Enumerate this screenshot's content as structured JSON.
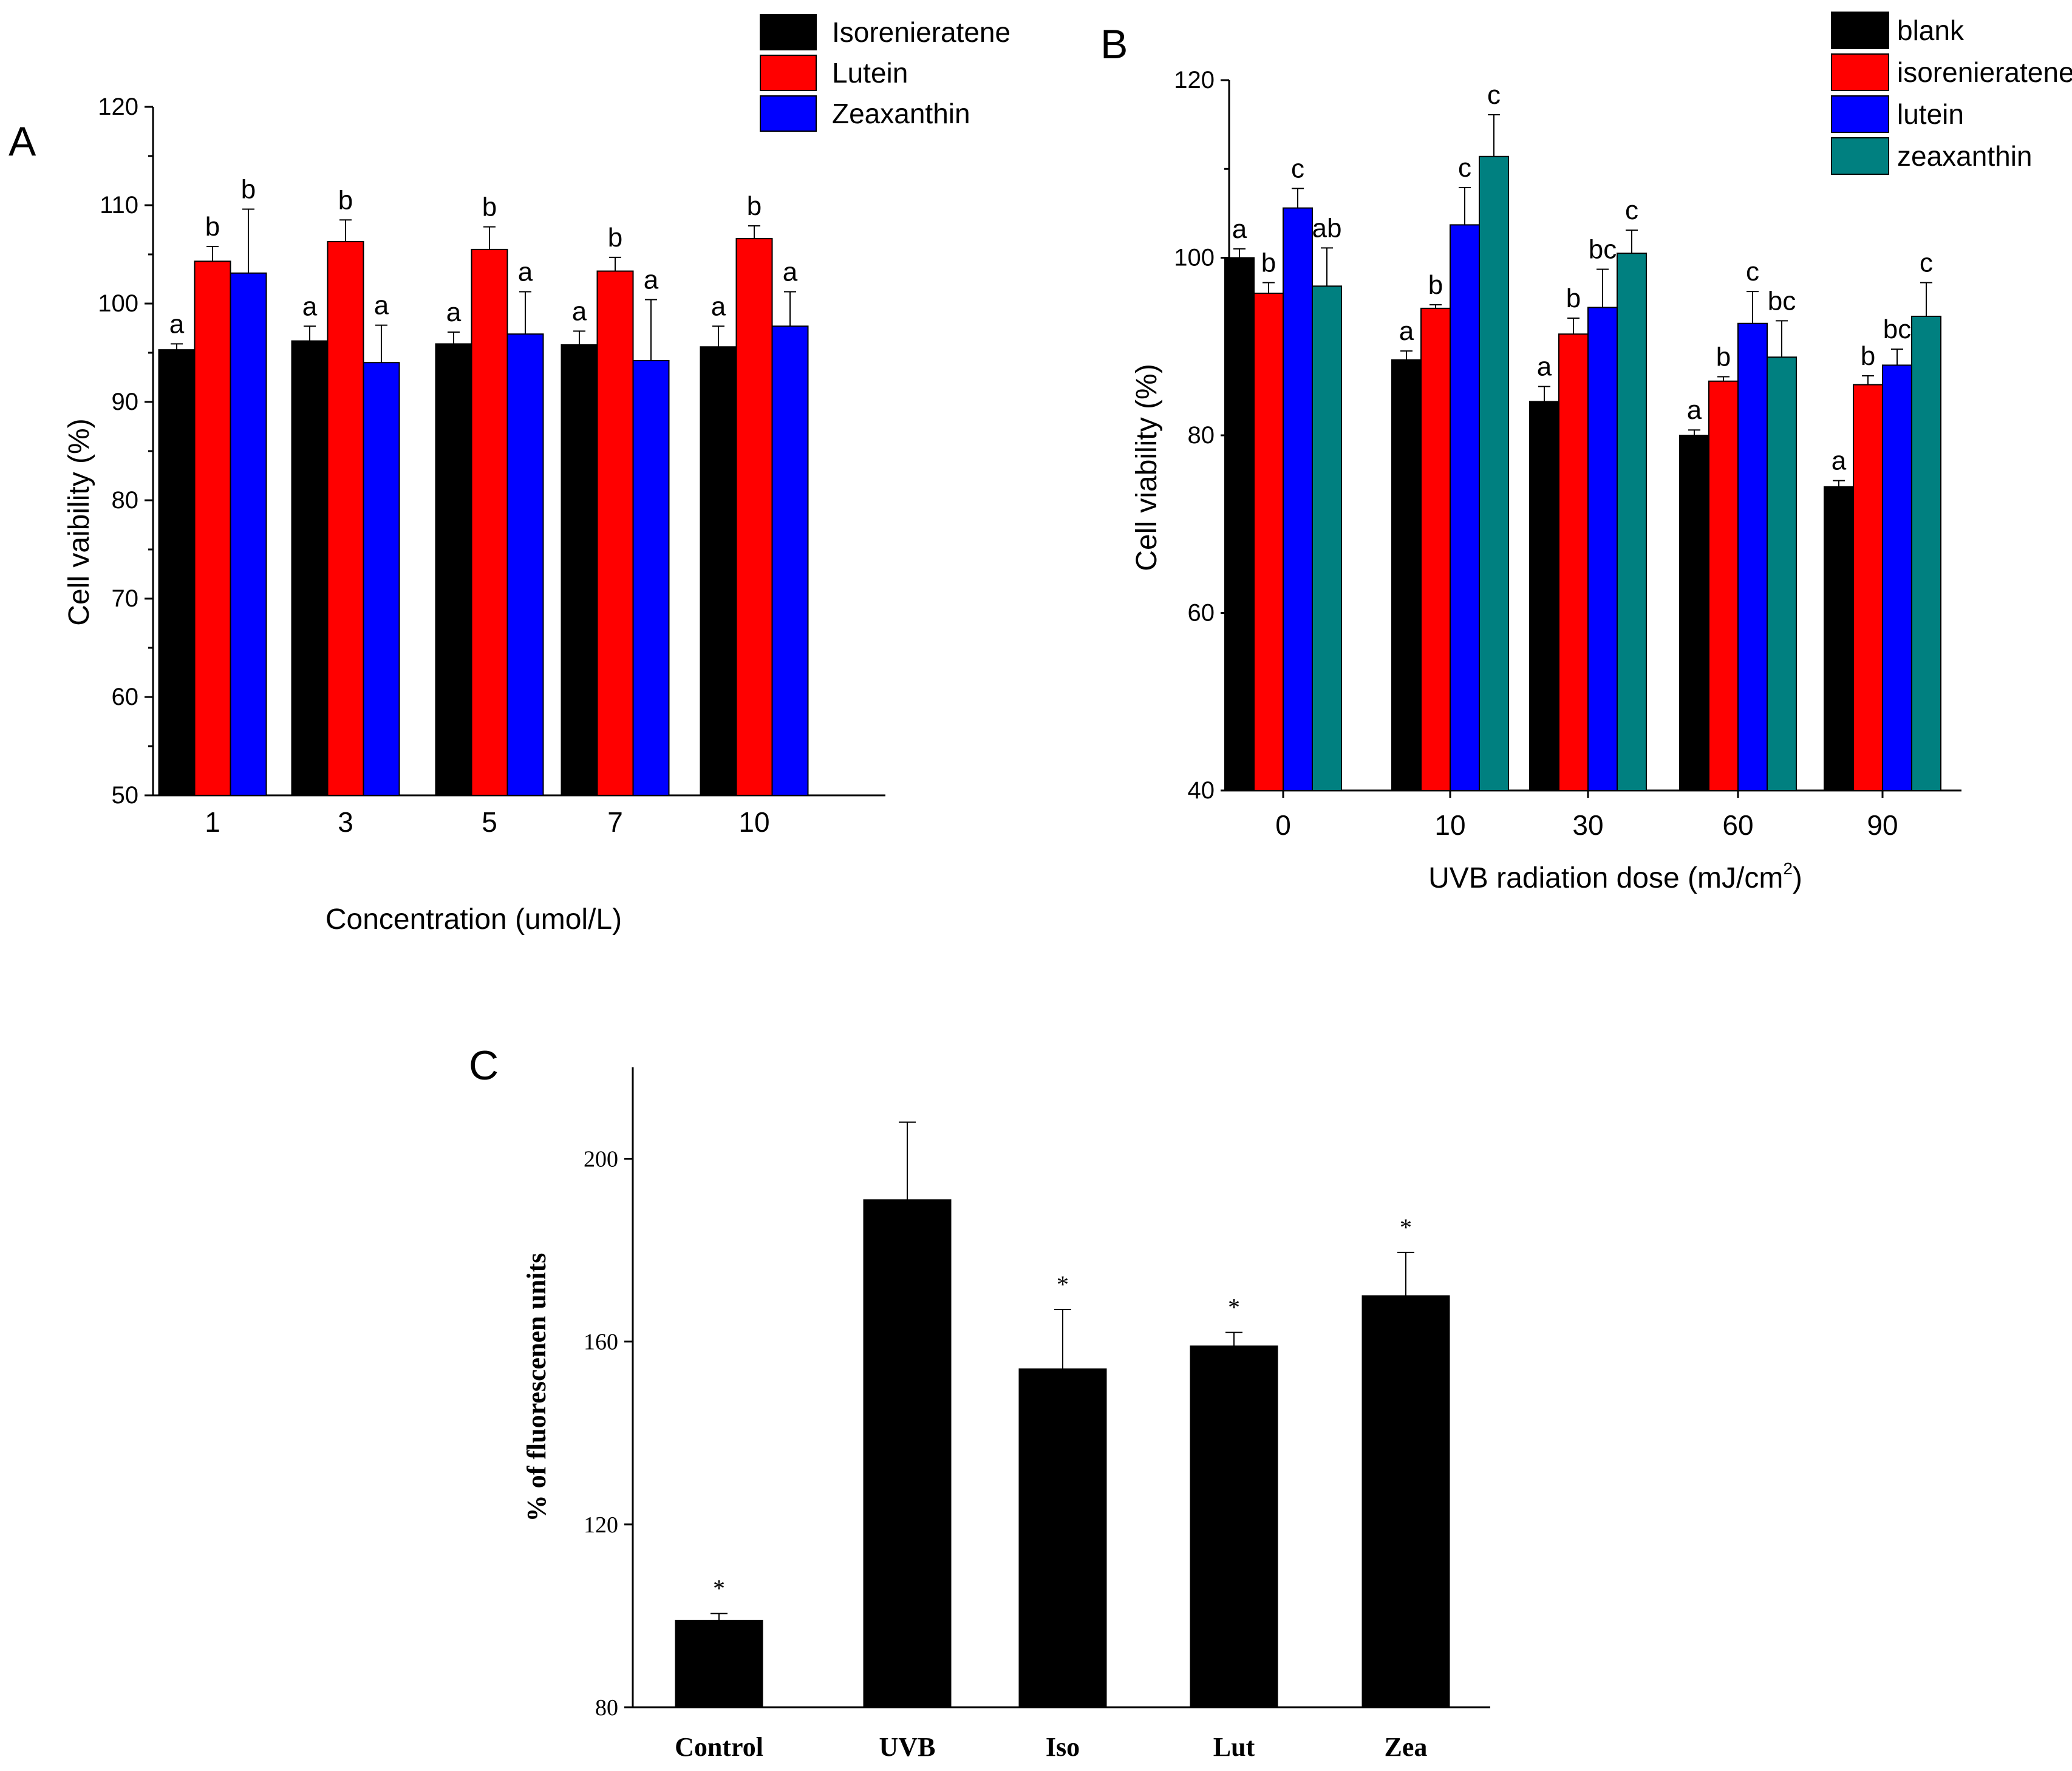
{
  "chart_data": [
    {
      "panel": "A",
      "type": "bar",
      "xlabel": "Concentration (umol/L)",
      "ylabel": "Cell vaibility (%)",
      "ylim": [
        50,
        120
      ],
      "yticks": [
        50,
        60,
        70,
        80,
        90,
        100,
        110,
        120
      ],
      "categories": [
        "1",
        "3",
        "5",
        "7",
        "10"
      ],
      "legend_position": "top-right",
      "series": [
        {
          "name": "Isorenieratene",
          "color": "#000000",
          "values": [
            95.3,
            96.2,
            95.9,
            95.8,
            95.6
          ],
          "errors": [
            0.6,
            1.5,
            1.2,
            1.4,
            2.1
          ],
          "labels": [
            "a",
            "a",
            "a",
            "a",
            "a"
          ]
        },
        {
          "name": "Lutein",
          "color": "#ff0000",
          "values": [
            104.3,
            106.3,
            105.5,
            103.3,
            106.6
          ],
          "errors": [
            1.5,
            2.2,
            2.3,
            1.4,
            1.3
          ],
          "labels": [
            "b",
            "b",
            "b",
            "b",
            "b"
          ]
        },
        {
          "name": "Zeaxanthin",
          "color": "#0000ff",
          "values": [
            103.1,
            94.0,
            96.9,
            94.2,
            97.7
          ],
          "errors": [
            6.5,
            3.8,
            4.3,
            6.2,
            3.5
          ],
          "labels": [
            "b",
            "a",
            "a",
            "a",
            "a"
          ]
        }
      ]
    },
    {
      "panel": "B",
      "type": "bar",
      "xlabel": "UVB radiation dose (mJ/cm",
      "xlabel_sup": "2",
      "xlabel_close": ")",
      "ylabel": "Cell viability (%)",
      "ylim": [
        40,
        120
      ],
      "yticks": [
        40,
        60,
        80,
        100,
        120
      ],
      "categories": [
        "0",
        "10",
        "30",
        "60",
        "90"
      ],
      "legend_position": "top-right",
      "series": [
        {
          "name": "blank",
          "color": "#000000",
          "values": [
            100.0,
            88.5,
            83.8,
            80.0,
            74.2
          ],
          "errors": [
            1.0,
            1.0,
            1.7,
            0.6,
            0.7
          ],
          "labels": [
            "a",
            "a",
            "a",
            "a",
            "a"
          ]
        },
        {
          "name": "isorenieratene",
          "color": "#ff0000",
          "values": [
            96.0,
            94.3,
            91.4,
            86.1,
            85.7
          ],
          "errors": [
            1.2,
            0.4,
            1.8,
            0.5,
            1.0
          ],
          "labels": [
            "b",
            "b",
            "b",
            "b",
            "b"
          ]
        },
        {
          "name": "lutein",
          "color": "#0000ff",
          "values": [
            105.6,
            103.7,
            94.4,
            92.6,
            87.9
          ],
          "errors": [
            2.2,
            4.2,
            4.3,
            3.6,
            1.8
          ],
          "labels": [
            "c",
            "c",
            "bc",
            "c",
            "bc"
          ]
        },
        {
          "name": "zeaxanthin",
          "color": "#008080",
          "values": [
            96.8,
            111.4,
            100.5,
            88.8,
            93.4
          ],
          "errors": [
            4.3,
            4.7,
            2.6,
            4.1,
            3.8
          ],
          "labels": [
            "ab",
            "c",
            "c",
            "bc",
            "c"
          ]
        }
      ]
    },
    {
      "panel": "C",
      "type": "bar",
      "xlabel": "",
      "ylabel": "% of fluorescenen units",
      "ylim": [
        80,
        220
      ],
      "yticks": [
        80,
        120,
        160,
        200
      ],
      "categories": [
        "Control",
        "UVB",
        "Iso",
        "Lut",
        "Zea"
      ],
      "series": [
        {
          "name": "fluorescence",
          "color": "#000000",
          "values": [
            99,
            191,
            154,
            159,
            170
          ],
          "errors": [
            1.5,
            17,
            13,
            3,
            9.5
          ],
          "labels": [
            "*",
            "",
            "*",
            "*",
            "*"
          ]
        }
      ]
    }
  ]
}
